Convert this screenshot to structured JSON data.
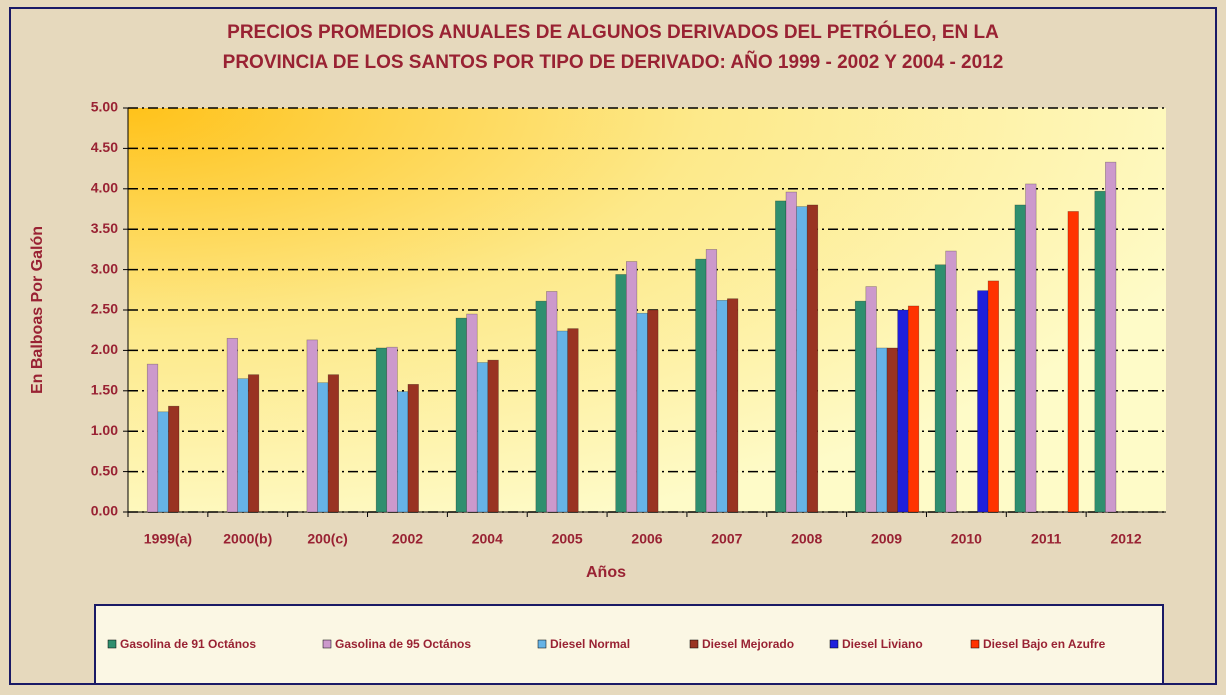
{
  "chart_data": {
    "type": "bar",
    "title": "PRECIOS PROMEDIOS ANUALES DE ALGUNOS DERIVADOS DEL PETRÓLEO, EN LA",
    "subtitle": "PROVINCIA DE LOS SANTOS POR TIPO DE DERIVADO: AÑO 1999 - 2002 Y 2004 - 2012",
    "x_label": "Años",
    "y_label": "En Balboas Por Galón",
    "categories": [
      "1999(a)",
      "2000(b)",
      "200(c)",
      "2002",
      "2004",
      "2005",
      "2006",
      "2007",
      "2008",
      "2009",
      "2010",
      "2011",
      "2012"
    ],
    "series": [
      {
        "name": "Gasolina de 91 Octános",
        "color": "#2f8f6f",
        "values": [
          null,
          null,
          null,
          2.03,
          2.4,
          2.61,
          2.94,
          3.13,
          3.85,
          2.61,
          3.06,
          3.8,
          3.97
        ]
      },
      {
        "name": "Gasolina de 95 Octános",
        "color": "#cc99cc",
        "values": [
          1.83,
          2.15,
          2.13,
          2.04,
          2.45,
          2.73,
          3.1,
          3.25,
          3.96,
          2.79,
          3.23,
          4.06,
          4.33
        ]
      },
      {
        "name": "Diesel Normal",
        "color": "#66b3e6",
        "values": [
          1.24,
          1.65,
          1.6,
          1.49,
          1.85,
          2.24,
          2.46,
          2.62,
          3.78,
          2.03,
          null,
          null,
          null
        ]
      },
      {
        "name": "Diesel Mejorado",
        "color": "#993322",
        "values": [
          1.31,
          1.7,
          1.7,
          1.58,
          1.88,
          2.27,
          2.5,
          2.64,
          3.8,
          2.03,
          null,
          null,
          null
        ]
      },
      {
        "name": "Diesel Liviano",
        "color": "#1f1fdd",
        "values": [
          null,
          null,
          null,
          null,
          null,
          null,
          null,
          null,
          null,
          2.5,
          2.74,
          null,
          null
        ]
      },
      {
        "name": "Diesel Bajo en Azufre",
        "color": "#ff3300",
        "values": [
          null,
          null,
          null,
          null,
          null,
          null,
          null,
          null,
          null,
          2.55,
          2.86,
          3.72,
          null
        ]
      }
    ],
    "ylim": [
      0,
      5
    ],
    "yticks": [
      {
        "value": 0,
        "label": "0.00"
      },
      {
        "value": 0.5,
        "label": "0.50"
      },
      {
        "value": 1,
        "label": "1.00"
      },
      {
        "value": 1.5,
        "label": "1.50"
      },
      {
        "value": 2,
        "label": "2.00"
      },
      {
        "value": 2.5,
        "label": "2.50"
      },
      {
        "value": 3,
        "label": "3.00"
      },
      {
        "value": 3.5,
        "label": "3.50"
      },
      {
        "value": 4,
        "label": "4.00"
      },
      {
        "value": 4.5,
        "label": "4.50"
      },
      {
        "value": 5,
        "label": "5.00"
      }
    ],
    "grid": true,
    "legend": "bottom"
  }
}
